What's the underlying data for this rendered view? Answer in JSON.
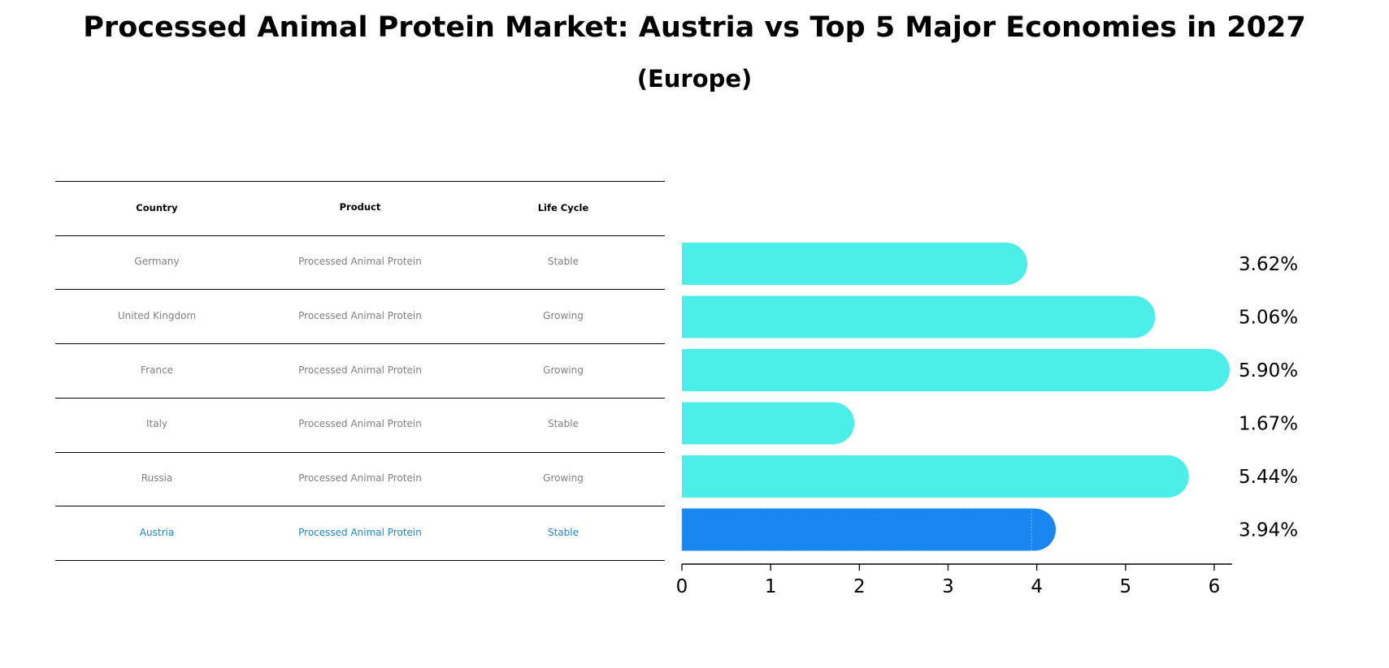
{
  "title": "Processed Animal Protein Market: Austria vs Top 5 Major Economies in 2027",
  "subtitle": "(Europe)",
  "colors": {
    "bar": "#4deeea",
    "highlight": "#1a86f2",
    "highlight_text": "#1a86d9",
    "muted_text": "#808080"
  },
  "table": {
    "headers": [
      "Country",
      "Product",
      "Life Cycle"
    ],
    "rows": [
      {
        "country": "Germany",
        "product": "Processed Animal Protein",
        "life_cycle": "Stable"
      },
      {
        "country": "United Kingdom",
        "product": "Processed Animal Protein",
        "life_cycle": "Growing"
      },
      {
        "country": "France",
        "product": "Processed Animal Protein",
        "life_cycle": "Growing"
      },
      {
        "country": "Italy",
        "product": "Processed Animal Protein",
        "life_cycle": "Stable"
      },
      {
        "country": "Russia",
        "product": "Processed Animal Protein",
        "life_cycle": "Growing"
      },
      {
        "country": "Austria",
        "product": "Processed Animal Protein",
        "life_cycle": "Stable"
      }
    ]
  },
  "chart_data": {
    "type": "bar",
    "orientation": "horizontal",
    "categories": [
      "Germany",
      "United Kingdom",
      "France",
      "Italy",
      "Russia",
      "Austria"
    ],
    "values": [
      3.62,
      5.06,
      5.9,
      1.67,
      5.44,
      3.94
    ],
    "value_labels": [
      "3.62%",
      "5.06%",
      "5.90%",
      "1.67%",
      "5.44%",
      "3.94%"
    ],
    "highlight": "Austria",
    "xlim": [
      0,
      6.2
    ],
    "xticks": [
      0,
      1,
      2,
      3,
      4,
      5,
      6
    ],
    "xtick_labels": [
      "0",
      "1",
      "2",
      "3",
      "4",
      "5",
      "6"
    ],
    "grid": false
  }
}
